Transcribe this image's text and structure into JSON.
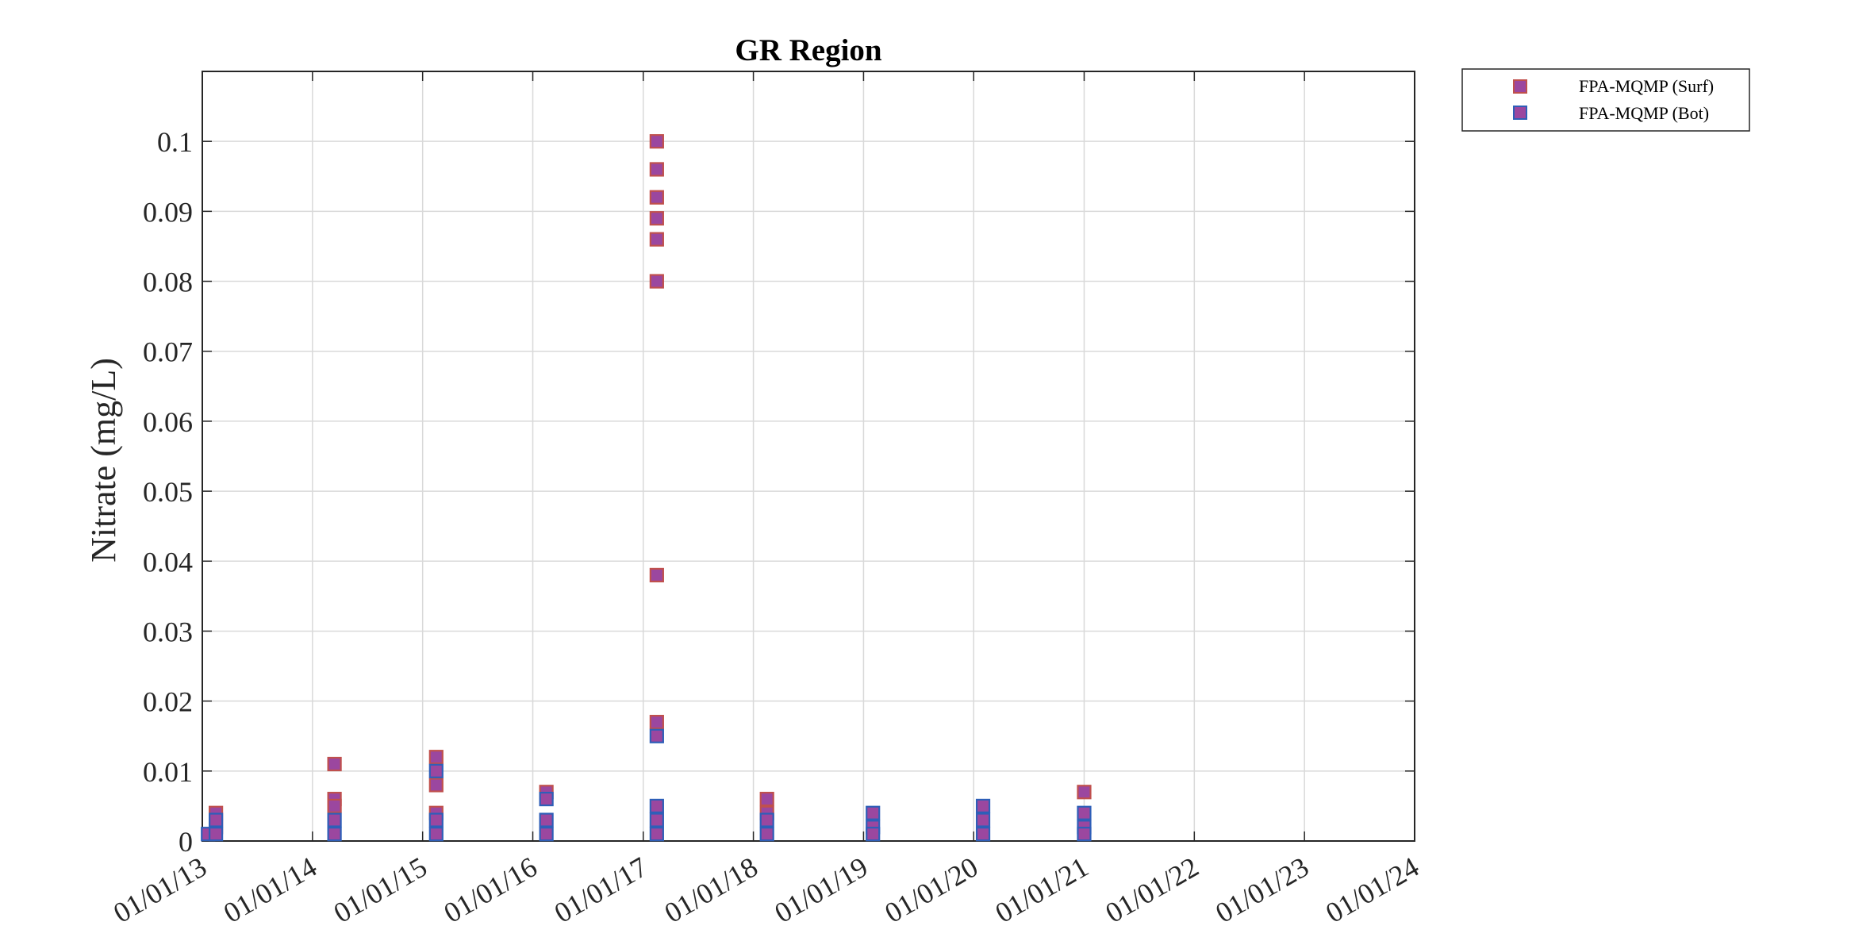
{
  "chart_data": {
    "type": "scatter",
    "title": "GR Region",
    "xlabel": "",
    "ylabel": "Nitrate (mg/L)",
    "x_axis": {
      "type": "date",
      "tick_labels": [
        "01/01/13",
        "01/01/14",
        "01/01/15",
        "01/01/16",
        "01/01/17",
        "01/01/18",
        "01/01/19",
        "01/01/20",
        "01/01/21",
        "01/01/22",
        "01/01/23",
        "01/01/24"
      ],
      "range": [
        "2013-01-01",
        "2024-01-01"
      ]
    },
    "y_axis": {
      "tick_labels": [
        "0",
        "0.01",
        "0.02",
        "0.03",
        "0.04",
        "0.05",
        "0.06",
        "0.07",
        "0.08",
        "0.09",
        "0.1"
      ],
      "ticks": [
        0,
        0.01,
        0.02,
        0.03,
        0.04,
        0.05,
        0.06,
        0.07,
        0.08,
        0.09,
        0.1
      ],
      "ylim": [
        0,
        0.11
      ]
    },
    "grid": true,
    "legend_position": "outside-top-right",
    "series": [
      {
        "name": "FPA-MQMP (Surf)",
        "marker": "square",
        "fill": "#9B479F",
        "edge": "#C0504D",
        "points": [
          {
            "x": "2013-02-15",
            "y": 0.004
          },
          {
            "x": "2013-02-15",
            "y": 0.002
          },
          {
            "x": "2014-03-15",
            "y": 0.011
          },
          {
            "x": "2014-03-15",
            "y": 0.006
          },
          {
            "x": "2014-03-15",
            "y": 0.005
          },
          {
            "x": "2015-02-15",
            "y": 0.012
          },
          {
            "x": "2015-02-15",
            "y": 0.008
          },
          {
            "x": "2015-02-15",
            "y": 0.004
          },
          {
            "x": "2016-02-15",
            "y": 0.007
          },
          {
            "x": "2017-02-15",
            "y": 0.1
          },
          {
            "x": "2017-02-15",
            "y": 0.096
          },
          {
            "x": "2017-02-15",
            "y": 0.092
          },
          {
            "x": "2017-02-15",
            "y": 0.089
          },
          {
            "x": "2017-02-15",
            "y": 0.086
          },
          {
            "x": "2017-02-15",
            "y": 0.08
          },
          {
            "x": "2017-02-15",
            "y": 0.038
          },
          {
            "x": "2017-02-15",
            "y": 0.017
          },
          {
            "x": "2018-02-15",
            "y": 0.006
          },
          {
            "x": "2018-02-15",
            "y": 0.004
          },
          {
            "x": "2021-01-01",
            "y": 0.007
          }
        ]
      },
      {
        "name": "FPA-MQMP (Bot)",
        "marker": "square",
        "fill": "#9B479F",
        "edge": "#2E5FB8",
        "points": [
          {
            "x": "2013-01-20",
            "y": 0.001
          },
          {
            "x": "2013-02-15",
            "y": 0.003
          },
          {
            "x": "2013-02-15",
            "y": 0.001
          },
          {
            "x": "2014-03-15",
            "y": 0.003
          },
          {
            "x": "2014-03-15",
            "y": 0.001
          },
          {
            "x": "2015-02-15",
            "y": 0.01
          },
          {
            "x": "2015-02-15",
            "y": 0.003
          },
          {
            "x": "2015-02-15",
            "y": 0.001
          },
          {
            "x": "2016-02-15",
            "y": 0.006
          },
          {
            "x": "2016-02-15",
            "y": 0.003
          },
          {
            "x": "2016-02-15",
            "y": 0.001
          },
          {
            "x": "2017-02-15",
            "y": 0.015
          },
          {
            "x": "2017-02-15",
            "y": 0.005
          },
          {
            "x": "2017-02-15",
            "y": 0.003
          },
          {
            "x": "2017-02-15",
            "y": 0.001
          },
          {
            "x": "2018-02-15",
            "y": 0.003
          },
          {
            "x": "2018-02-15",
            "y": 0.001
          },
          {
            "x": "2019-02-01",
            "y": 0.004
          },
          {
            "x": "2019-02-01",
            "y": 0.002
          },
          {
            "x": "2019-02-01",
            "y": 0.001
          },
          {
            "x": "2020-02-01",
            "y": 0.005
          },
          {
            "x": "2020-02-01",
            "y": 0.003
          },
          {
            "x": "2020-02-01",
            "y": 0.001
          },
          {
            "x": "2021-01-01",
            "y": 0.004
          },
          {
            "x": "2021-01-01",
            "y": 0.002
          },
          {
            "x": "2021-01-01",
            "y": 0.001
          }
        ]
      }
    ]
  }
}
